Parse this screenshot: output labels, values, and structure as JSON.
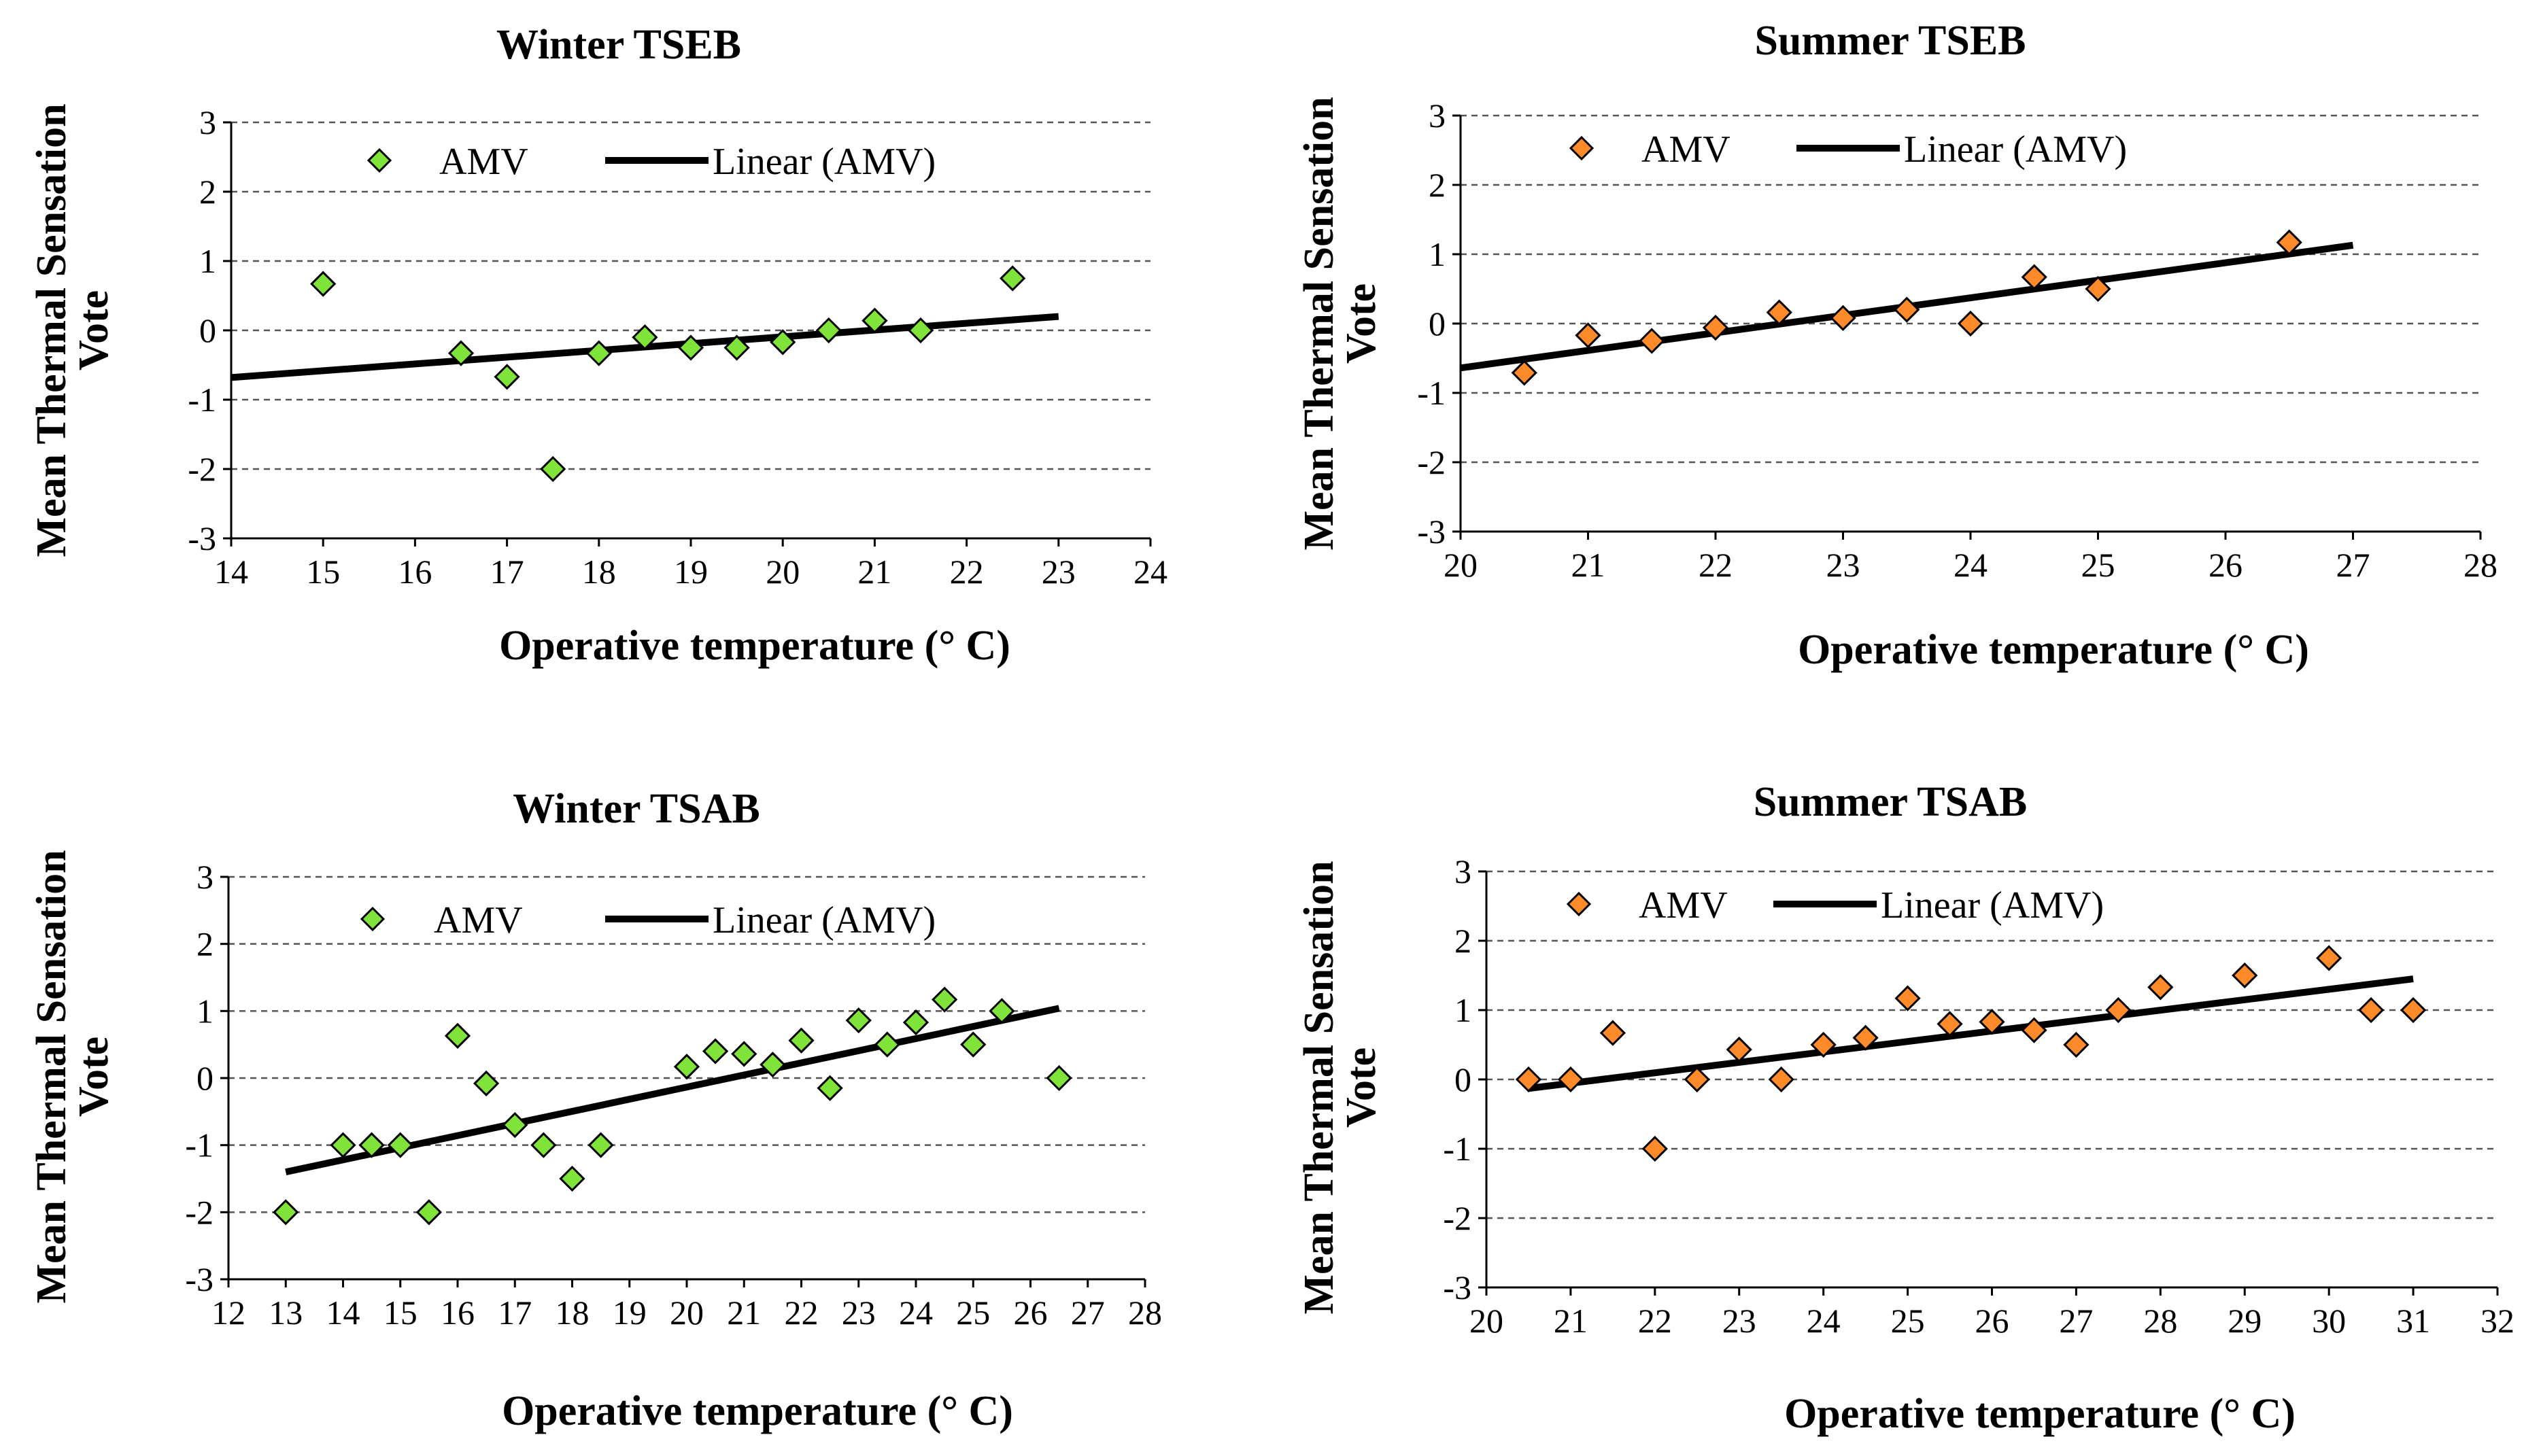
{
  "chart_data": [
    {
      "type": "scatter",
      "title": "Winter TSEB",
      "xlabel": "Operative temperature (° C)",
      "ylabel_line1": "Mean Thermal Sensation",
      "ylabel_line2": "Vote",
      "xlim": [
        14,
        24
      ],
      "xstep": 1,
      "ylim": [
        -3,
        3
      ],
      "ystep": 1,
      "marker_color": "#7fe33a",
      "legend": {
        "points": "AMV",
        "trend": "Linear (AMV)"
      },
      "series": [
        {
          "name": "AMV",
          "x": [
            15,
            16.5,
            17,
            17.5,
            18,
            18.5,
            19,
            19.5,
            20,
            20.5,
            21,
            21.5,
            22.5
          ],
          "y": [
            0.67,
            -0.33,
            -0.67,
            -2.0,
            -0.33,
            -0.1,
            -0.25,
            -0.25,
            -0.17,
            0.0,
            0.14,
            0.0,
            0.75
          ]
        }
      ],
      "trendline": {
        "x": [
          14,
          23
        ],
        "y": [
          -0.68,
          0.2
        ]
      }
    },
    {
      "type": "scatter",
      "title": "Summer TSEB",
      "xlabel": "Operative temperature (° C)",
      "ylabel_line1": "Mean Thermal Sensation",
      "ylabel_line2": "Vote",
      "xlim": [
        20,
        28
      ],
      "xstep": 1,
      "ylim": [
        -3,
        3
      ],
      "ystep": 1,
      "marker_color": "#ff8a2a",
      "legend": {
        "points": "AMV",
        "trend": "Linear (AMV)"
      },
      "series": [
        {
          "name": "AMV",
          "x": [
            20.5,
            21,
            21.5,
            22,
            22.5,
            23,
            23.5,
            24,
            24.5,
            25,
            26.5
          ],
          "y": [
            -0.71,
            -0.17,
            -0.25,
            -0.06,
            0.16,
            0.08,
            0.2,
            0.0,
            0.67,
            0.5,
            1.17
          ]
        }
      ],
      "trendline": {
        "x": [
          20,
          27
        ],
        "y": [
          -0.64,
          1.13
        ]
      }
    },
    {
      "type": "scatter",
      "title": "Winter TSAB",
      "xlabel": "Operative temperature (° C)",
      "ylabel_line1": "Mean Thermal Sensation",
      "ylabel_line2": "Vote",
      "xlim": [
        12,
        28
      ],
      "xstep": 1,
      "ylim": [
        -3,
        3
      ],
      "ystep": 1,
      "marker_color": "#7fe33a",
      "legend": {
        "points": "AMV",
        "trend": "Linear (AMV)"
      },
      "series": [
        {
          "name": "AMV",
          "x": [
            13,
            14,
            14.5,
            15,
            15.5,
            16,
            16.5,
            17,
            17.5,
            18,
            18.5,
            20,
            20.5,
            21,
            21.5,
            22,
            22.5,
            23,
            23.5,
            24,
            24.5,
            25,
            25.5,
            26.5
          ],
          "y": [
            -2.0,
            -1.0,
            -1.0,
            -1.0,
            -2.0,
            0.63,
            -0.08,
            -0.7,
            -1.0,
            -1.5,
            -1.0,
            0.17,
            0.4,
            0.36,
            0.2,
            0.56,
            -0.15,
            0.86,
            0.5,
            0.83,
            1.17,
            0.5,
            1.0,
            0.0
          ]
        }
      ],
      "trendline": {
        "x": [
          13,
          26.5
        ],
        "y": [
          -1.4,
          1.04
        ]
      }
    },
    {
      "type": "scatter",
      "title": "Summer TSAB",
      "xlabel": "Operative temperature (° C)",
      "ylabel_line1": "Mean Thermal Sensation",
      "ylabel_line2": "Vote",
      "xlim": [
        20,
        32
      ],
      "xstep": 1,
      "ylim": [
        -3,
        3
      ],
      "ystep": 1,
      "marker_color": "#ff8a2a",
      "legend": {
        "points": "AMV",
        "trend": "Linear (AMV)"
      },
      "series": [
        {
          "name": "AMV",
          "x": [
            20.5,
            21,
            21.5,
            22,
            22.5,
            23,
            23.5,
            24,
            24.5,
            25,
            25.5,
            26,
            26.5,
            27,
            27.5,
            28,
            29,
            30,
            30.5,
            31
          ],
          "y": [
            0.0,
            0.0,
            0.67,
            -1.0,
            0.0,
            0.43,
            0.0,
            0.5,
            0.6,
            1.17,
            0.8,
            0.83,
            0.71,
            0.5,
            1.0,
            1.33,
            1.5,
            1.75,
            1.0,
            1.0
          ]
        }
      ],
      "trendline": {
        "x": [
          20.5,
          31
        ],
        "y": [
          -0.13,
          1.45
        ]
      }
    }
  ]
}
